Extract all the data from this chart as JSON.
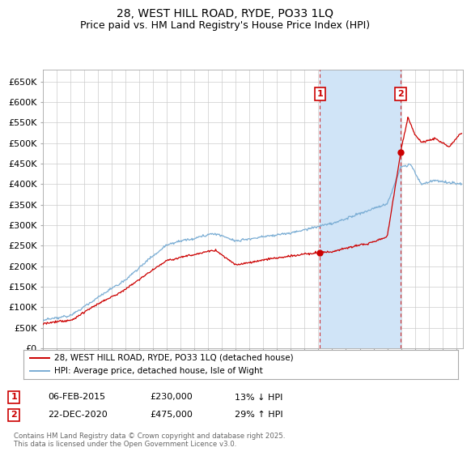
{
  "title": "28, WEST HILL ROAD, RYDE, PO33 1LQ",
  "subtitle": "Price paid vs. HM Land Registry's House Price Index (HPI)",
  "ylim": [
    0,
    680000
  ],
  "yticks": [
    0,
    50000,
    100000,
    150000,
    200000,
    250000,
    300000,
    350000,
    400000,
    450000,
    500000,
    550000,
    600000,
    650000
  ],
  "xlim_start": 1995.0,
  "xlim_end": 2025.5,
  "background_color": "#ffffff",
  "grid_color": "#cccccc",
  "sale1_date": 2015.1,
  "sale1_price": 230000,
  "sale1_label": "1",
  "sale1_date_str": "06-FEB-2015",
  "sale1_pct": "13% ↓ HPI",
  "sale2_date": 2020.97,
  "sale2_price": 475000,
  "sale2_label": "2",
  "sale2_date_str": "22-DEC-2020",
  "sale2_pct": "29% ↑ HPI",
  "red_line_color": "#cc0000",
  "blue_line_color": "#7aadd4",
  "shade_color": "#d0e4f7",
  "legend_label1": "28, WEST HILL ROAD, RYDE, PO33 1LQ (detached house)",
  "legend_label2": "HPI: Average price, detached house, Isle of Wight",
  "footer": "Contains HM Land Registry data © Crown copyright and database right 2025.\nThis data is licensed under the Open Government Licence v3.0.",
  "title_fontsize": 10,
  "subtitle_fontsize": 9,
  "axis_fontsize": 8
}
